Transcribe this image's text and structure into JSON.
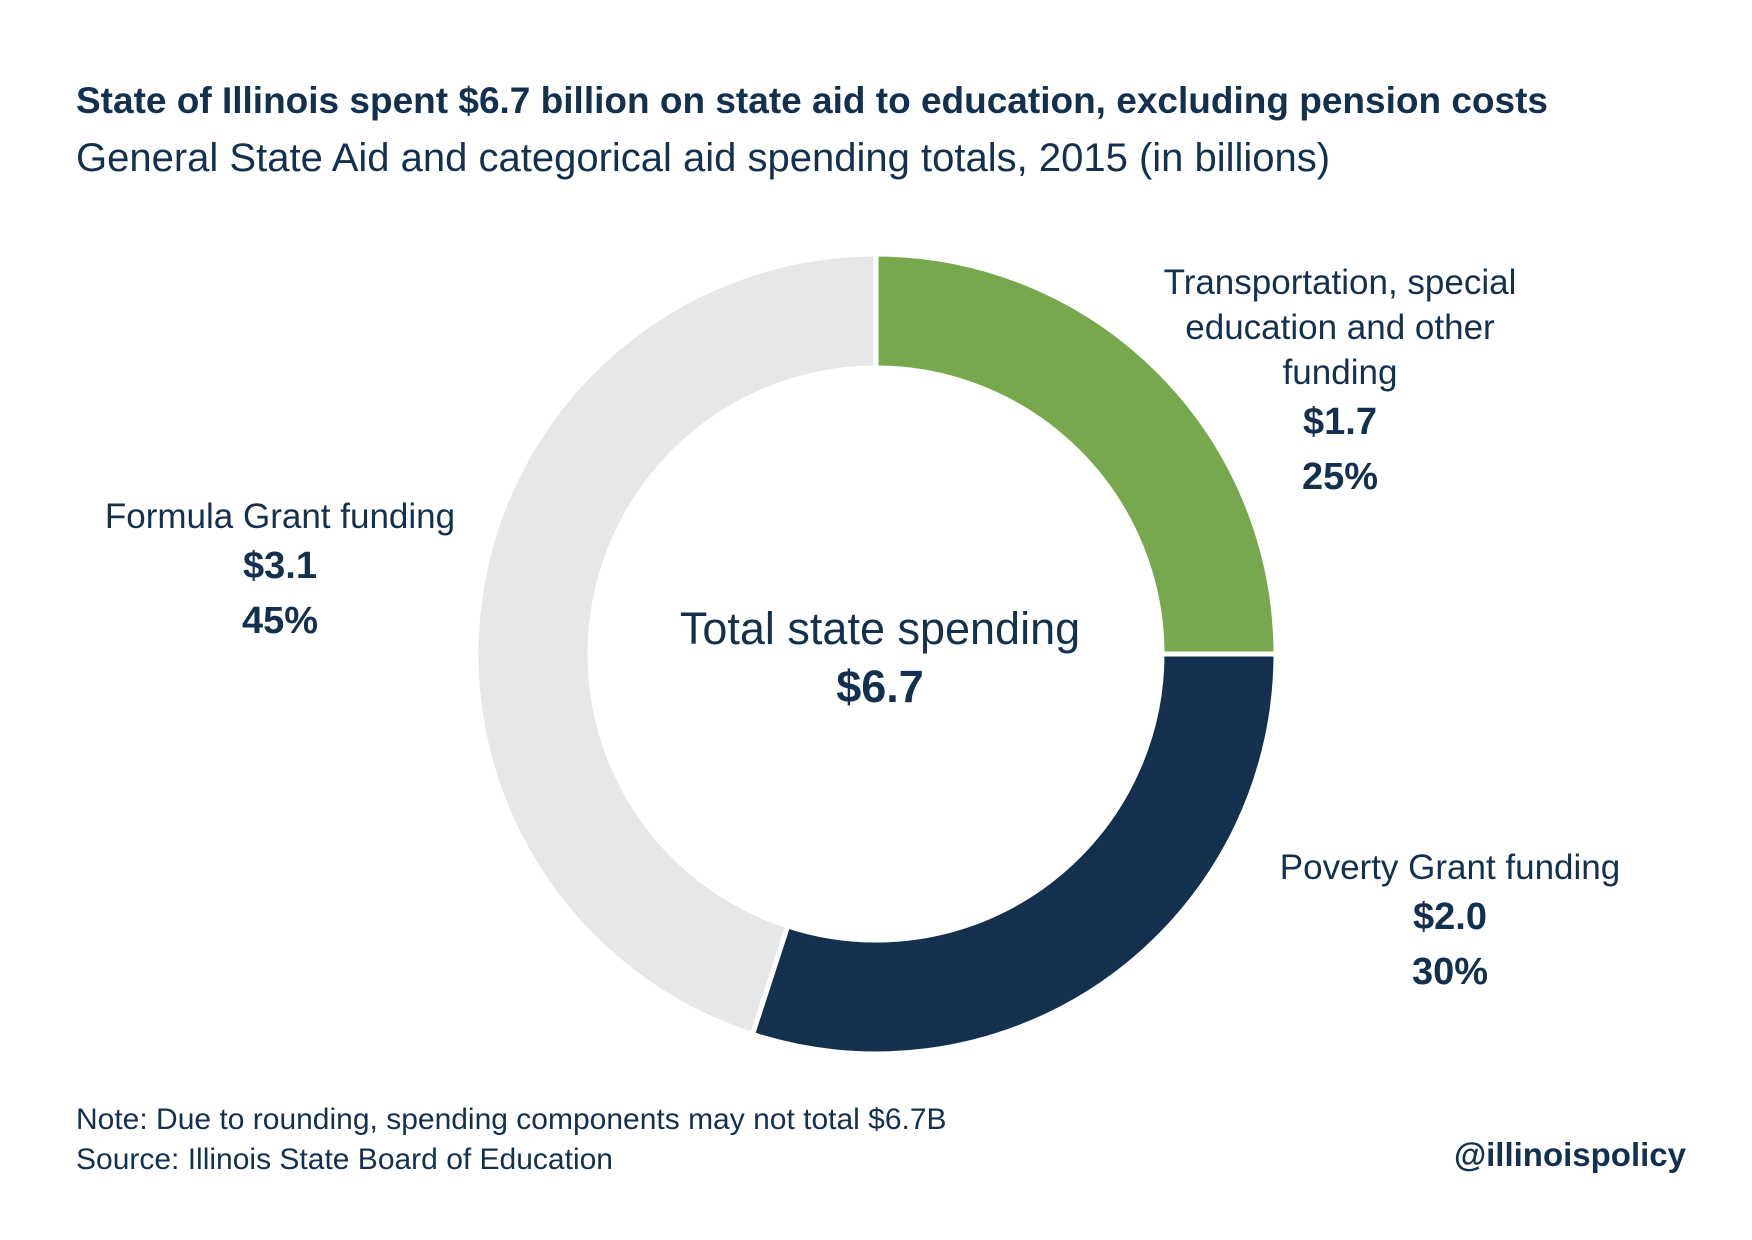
{
  "title": "State of Illinois spent $6.7 billion on state aid to education, excluding pension costs",
  "subtitle": "General State Aid and categorical aid spending totals, 2015 (in billions)",
  "chart_data": {
    "type": "pie",
    "donut": true,
    "slices": [
      {
        "name": "Transportation, special education and other funding",
        "value": 1.7,
        "value_label": "$1.7",
        "percent": 25,
        "percent_label": "25%",
        "color": "#78a84e"
      },
      {
        "name": "Poverty Grant funding",
        "value": 2.0,
        "value_label": "$2.0",
        "percent": 30,
        "percent_label": "30%",
        "color": "#13304f"
      },
      {
        "name": "Formula Grant funding",
        "value": 3.1,
        "value_label": "$3.1",
        "percent": 45,
        "percent_label": "45%",
        "color": "#e6e7e8"
      }
    ],
    "center_title": "Total state spending",
    "center_value": "$6.7"
  },
  "labels": {
    "transport_line1": "Transportation, special",
    "transport_line2": "education and other",
    "transport_line3": "funding"
  },
  "footer": {
    "note": "Note: Due to rounding, spending components may not total $6.7B",
    "source": "Source: Illinois State Board of Education",
    "handle": "@illinoispolicy"
  }
}
